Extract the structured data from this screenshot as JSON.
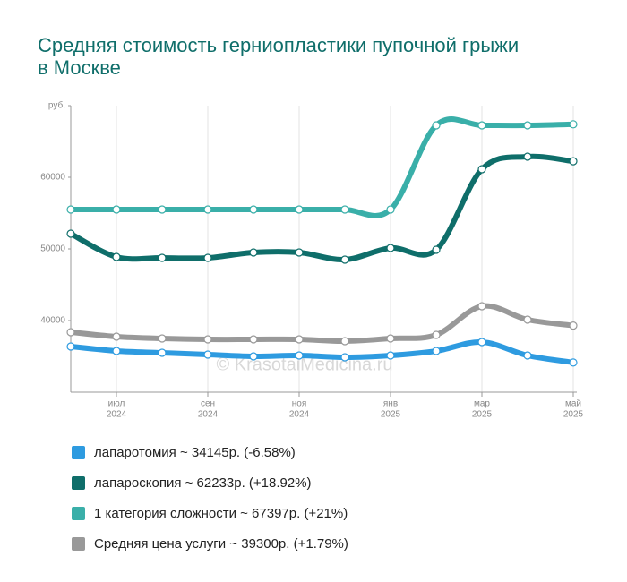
{
  "chart_data": {
    "type": "line",
    "title": "Средняя стоимость герниопластики пупочной грыжи в Москве",
    "watermark": "© KrasotaiMedicina.ru",
    "categories": [
      null,
      "июл",
      null,
      "сен",
      null,
      "ноя",
      null,
      "янв",
      null,
      "мар",
      null,
      "май"
    ],
    "category_years": [
      null,
      "2024",
      null,
      "2024",
      null,
      "2024",
      null,
      "2025",
      null,
      "2025",
      null,
      "2025"
    ],
    "ylim": [
      30000,
      70000
    ],
    "yticks": [
      40000,
      50000,
      60000,
      {
        "value": 70000,
        "label": "руб."
      }
    ],
    "series": [
      {
        "name": "лапаротомия ~ 34145р. (-6.58%)",
        "color": "#2e9be0",
        "values": [
          36375,
          35750,
          35500,
          35250,
          35000,
          35125,
          34875,
          35125,
          35750,
          37000,
          35125,
          34145
        ]
      },
      {
        "name": "лапароскопия ~ 62233р. (+18.92%)",
        "color": "#0f6e6a",
        "values": [
          52125,
          48875,
          48750,
          48750,
          49500,
          49500,
          48500,
          50125,
          49875,
          61125,
          62875,
          62233
        ]
      },
      {
        "name": "1 категория сложности ~ 67397р. (+21%)",
        "color": "#3aafa9",
        "values": [
          55500,
          55500,
          55500,
          55500,
          55500,
          55500,
          55500,
          55500,
          67250,
          67250,
          67250,
          67397
        ]
      },
      {
        "name": "Средняя цена услуги ~ 39300р. (+1.79%)",
        "color": "#999999",
        "values": [
          38375,
          37750,
          37500,
          37375,
          37375,
          37375,
          37125,
          37500,
          38000,
          42000,
          40125,
          39300
        ]
      }
    ]
  }
}
